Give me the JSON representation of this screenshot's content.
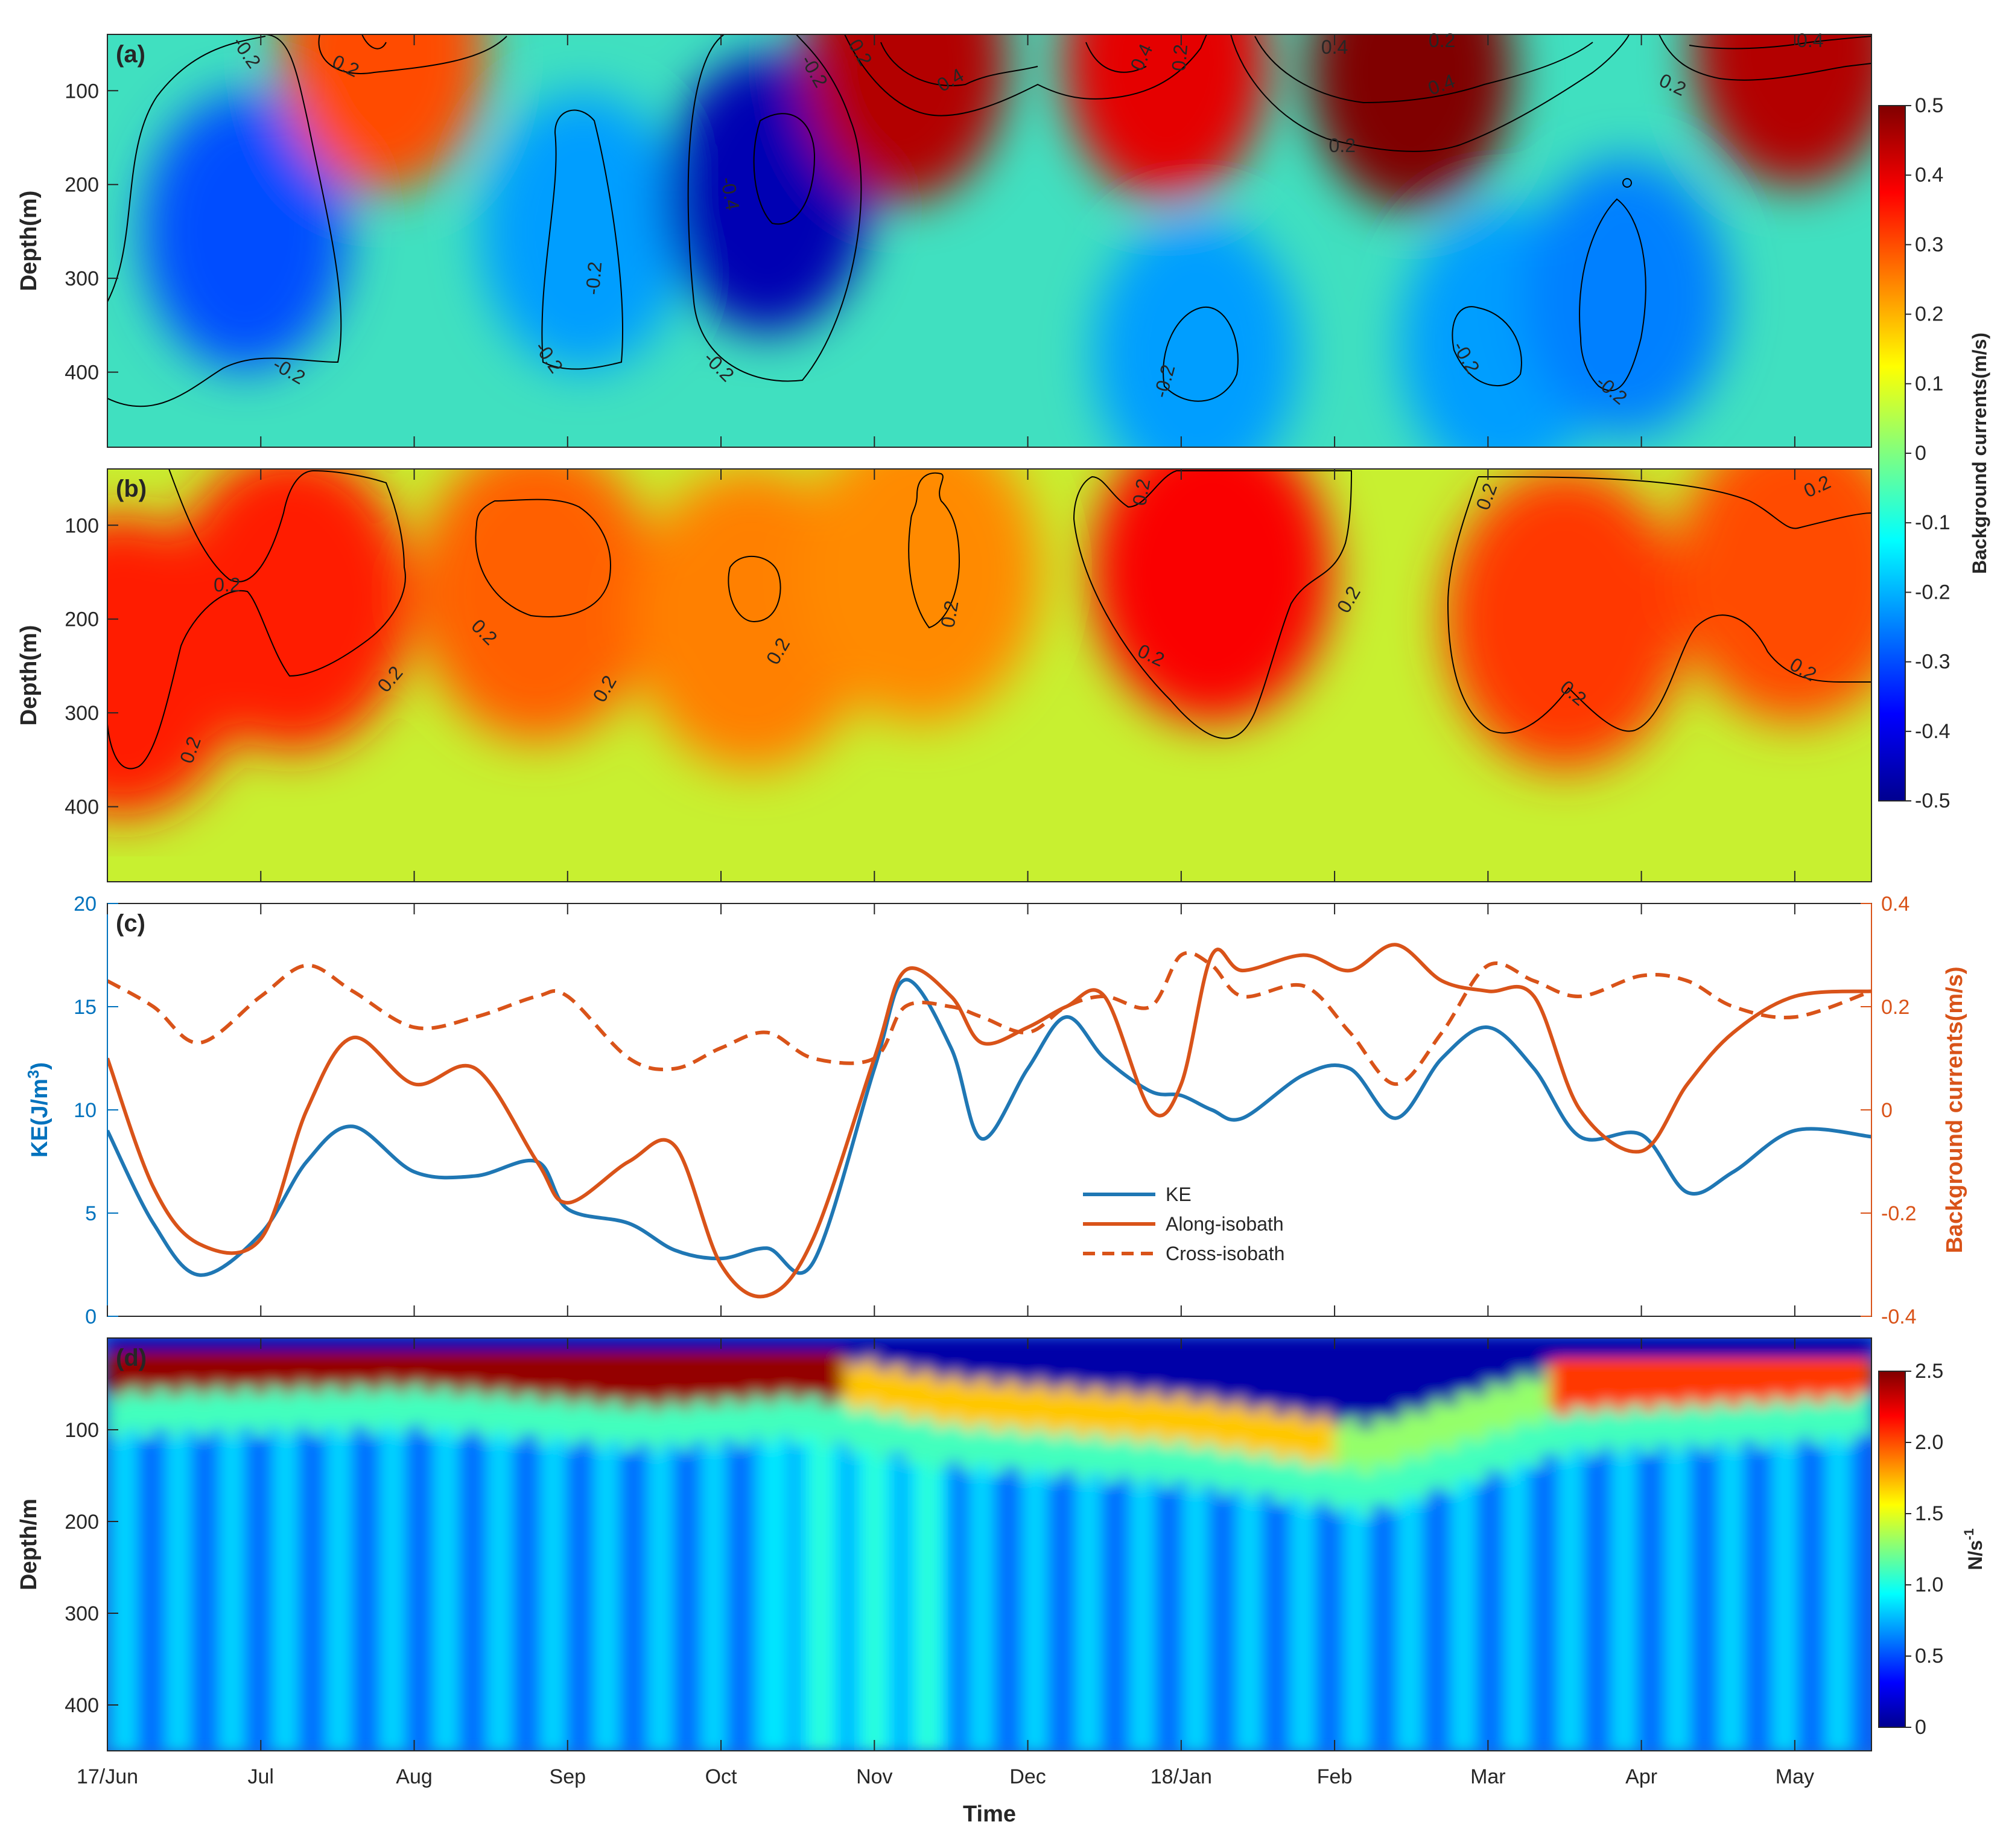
{
  "figure": {
    "xlabel": "Time",
    "time_ticks": [
      "17/Jun",
      "Jul",
      "Aug",
      "Sep",
      "Oct",
      "Nov",
      "Dec",
      "18/Jan",
      "Feb",
      "Mar",
      "Apr",
      "May"
    ],
    "depth_ticks": [
      "100",
      "200",
      "300",
      "400"
    ],
    "colors": {
      "blue_line": "#1f77b4",
      "orange_line": "#d95319",
      "axis_left": "#0072bd",
      "axis_right": "#d95319"
    }
  },
  "chart_data": [
    {
      "type": "heatmap",
      "panel": "(a)",
      "ylabel": "Depth(m)",
      "ylim": [
        480,
        40
      ],
      "xlim_months": [
        0,
        11.5
      ],
      "colorbar": {
        "label": "Background currents(m/s)",
        "range": [
          -0.5,
          0.5
        ],
        "ticks": [
          "0.5",
          "0.4",
          "0.3",
          "0.2",
          "0.1",
          "0",
          "-0.1",
          "-0.2",
          "-0.3",
          "-0.4",
          "-0.5"
        ]
      },
      "features": [
        {
          "t": 0.9,
          "d": 250,
          "value": -0.3
        },
        {
          "t": 3.1,
          "d": 250,
          "value": -0.22
        },
        {
          "t": 4.3,
          "d": 210,
          "value": -0.45
        },
        {
          "t": 1.8,
          "d": 60,
          "value": 0.3
        },
        {
          "t": 5.2,
          "d": 70,
          "value": 0.45
        },
        {
          "t": 6.9,
          "d": 70,
          "value": 0.4
        },
        {
          "t": 8.5,
          "d": 80,
          "value": 0.5
        },
        {
          "t": 11.0,
          "d": 55,
          "value": 0.45
        },
        {
          "t": 7.1,
          "d": 380,
          "value": -0.22
        },
        {
          "t": 9.1,
          "d": 370,
          "value": -0.22
        },
        {
          "t": 9.9,
          "d": 320,
          "value": -0.25
        }
      ],
      "contour_labels": [
        {
          "text": "-0.2",
          "t": 0.9,
          "d": 60,
          "rot": 55
        },
        {
          "text": "-0.2",
          "t": 1.18,
          "d": 400,
          "rot": 30
        },
        {
          "text": "0.2",
          "t": 1.55,
          "d": 75,
          "rot": 25
        },
        {
          "text": "-0.2",
          "t": 3.18,
          "d": 300,
          "rot": -85
        },
        {
          "text": "-0.2",
          "t": 2.87,
          "d": 385,
          "rot": 55
        },
        {
          "text": "-0.4",
          "t": 4.05,
          "d": 210,
          "rot": 80
        },
        {
          "text": "-0.2",
          "t": 4.6,
          "d": 80,
          "rot": 60
        },
        {
          "text": "-0.2",
          "t": 3.98,
          "d": 395,
          "rot": 45
        },
        {
          "text": "0.2",
          "t": 4.9,
          "d": 60,
          "rot": 60
        },
        {
          "text": "0.4",
          "t": 5.5,
          "d": 90,
          "rot": -30
        },
        {
          "text": "0.4",
          "t": 6.75,
          "d": 65,
          "rot": -65
        },
        {
          "text": "0.2",
          "t": 7.0,
          "d": 65,
          "rot": -85
        },
        {
          "text": "0.4",
          "t": 8.0,
          "d": 55,
          "rot": 0
        },
        {
          "text": "0.2",
          "t": 8.7,
          "d": 48,
          "rot": 0
        },
        {
          "text": "0.4",
          "t": 8.7,
          "d": 95,
          "rot": -20
        },
        {
          "text": "0.2",
          "t": 8.05,
          "d": 160,
          "rot": 0
        },
        {
          "text": "0.4",
          "t": 11.1,
          "d": 48,
          "rot": 0
        },
        {
          "text": "0.2",
          "t": 10.2,
          "d": 95,
          "rot": 25
        },
        {
          "text": "-0.2",
          "t": 6.9,
          "d": 410,
          "rot": -75
        },
        {
          "text": "-0.2",
          "t": 8.85,
          "d": 385,
          "rot": 60
        },
        {
          "text": "-0.2",
          "t": 9.8,
          "d": 420,
          "rot": 40
        }
      ]
    },
    {
      "type": "heatmap",
      "panel": "(b)",
      "ylabel": "Depth(m)",
      "ylim": [
        480,
        40
      ],
      "xlim_months": [
        0,
        11.5
      ],
      "features": [
        {
          "t": 0.1,
          "d": 250,
          "value": 0.35
        },
        {
          "t": 1.2,
          "d": 180,
          "value": 0.35
        },
        {
          "t": 2.8,
          "d": 170,
          "value": 0.28
        },
        {
          "t": 4.2,
          "d": 200,
          "value": 0.25
        },
        {
          "t": 5.3,
          "d": 150,
          "value": 0.24
        },
        {
          "t": 7.2,
          "d": 150,
          "value": 0.38
        },
        {
          "t": 9.5,
          "d": 200,
          "value": 0.32
        },
        {
          "t": 11.0,
          "d": 150,
          "value": 0.3
        }
      ],
      "contour_labels": [
        {
          "text": "0.2",
          "t": 0.78,
          "d": 165,
          "rot": 0
        },
        {
          "text": "0.2",
          "t": 0.55,
          "d": 340,
          "rot": -70
        },
        {
          "text": "0.2",
          "t": 1.85,
          "d": 265,
          "rot": -50
        },
        {
          "text": "0.2",
          "t": 2.45,
          "d": 215,
          "rot": 45
        },
        {
          "text": "0.2",
          "t": 3.25,
          "d": 275,
          "rot": -60
        },
        {
          "text": "0.2",
          "t": 4.38,
          "d": 235,
          "rot": -60
        },
        {
          "text": "0.2",
          "t": 5.5,
          "d": 195,
          "rot": -80
        },
        {
          "text": "0.2",
          "t": 6.8,
          "d": 240,
          "rot": 25
        },
        {
          "text": "0.2",
          "t": 6.75,
          "d": 65,
          "rot": -80
        },
        {
          "text": "0.2",
          "t": 8.1,
          "d": 180,
          "rot": -60
        },
        {
          "text": "0.2",
          "t": 9.0,
          "d": 70,
          "rot": -70
        },
        {
          "text": "0.2",
          "t": 9.55,
          "d": 280,
          "rot": 40
        },
        {
          "text": "0.2",
          "t": 11.15,
          "d": 60,
          "rot": -25
        },
        {
          "text": "0.2",
          "t": 11.05,
          "d": 255,
          "rot": 30
        }
      ]
    },
    {
      "type": "line",
      "panel": "(c)",
      "ylabel_left": "KE(J/m",
      "ylabel_left_sup": "3",
      "ylabel_left_end": ")",
      "ylabel_right": "Background currents(m/s)",
      "ylim_left": [
        0,
        20
      ],
      "ylim_right": [
        -0.4,
        0.4
      ],
      "yticks_left": [
        "0",
        "5",
        "10",
        "15",
        "20"
      ],
      "yticks_right": [
        "-0.4",
        "-0.2",
        "0",
        "0.2",
        "0.4"
      ],
      "x_months": [
        0,
        0.3,
        0.6,
        1.0,
        1.3,
        1.6,
        2.0,
        2.4,
        2.8,
        3.0,
        3.4,
        3.7,
        4.0,
        4.3,
        4.6,
        5.0,
        5.2,
        5.5,
        5.7,
        6.0,
        6.25,
        6.5,
        6.8,
        7.0,
        7.2,
        7.4,
        7.8,
        8.1,
        8.4,
        8.7,
        9.0,
        9.3,
        9.6,
        10.0,
        10.3,
        10.6,
        11.0,
        11.5
      ],
      "series": [
        {
          "name": "KE",
          "axis": "left",
          "style": "solid",
          "values": [
            9.0,
            4.5,
            2.0,
            4.0,
            7.5,
            9.2,
            7.0,
            6.8,
            7.5,
            5.2,
            4.5,
            3.2,
            2.8,
            3.3,
            2.6,
            12.0,
            16.3,
            13.0,
            8.6,
            12.0,
            14.5,
            12.5,
            10.9,
            10.7,
            10.0,
            9.6,
            11.7,
            12.0,
            9.6,
            12.5,
            14.0,
            12.0,
            8.7,
            8.8,
            6.0,
            7.0,
            9.0,
            8.7
          ]
        },
        {
          "name": "Along-isobath",
          "axis": "right",
          "style": "solid",
          "values": [
            0.1,
            -0.15,
            -0.26,
            -0.25,
            0.0,
            0.14,
            0.05,
            0.08,
            -0.1,
            -0.18,
            -0.1,
            -0.07,
            -0.3,
            -0.36,
            -0.25,
            0.1,
            0.27,
            0.22,
            0.13,
            0.16,
            0.2,
            0.22,
            0.0,
            0.05,
            0.3,
            0.27,
            0.3,
            0.27,
            0.32,
            0.25,
            0.23,
            0.22,
            0.0,
            -0.08,
            0.05,
            0.15,
            0.22,
            0.23
          ]
        },
        {
          "name": "Cross-isobath",
          "axis": "right",
          "style": "dashed",
          "values": [
            0.25,
            0.2,
            0.13,
            0.22,
            0.28,
            0.23,
            0.16,
            0.18,
            0.22,
            0.22,
            0.1,
            0.08,
            0.12,
            0.15,
            0.1,
            0.1,
            0.2,
            0.2,
            0.18,
            0.15,
            0.2,
            0.22,
            0.2,
            0.3,
            0.28,
            0.22,
            0.24,
            0.15,
            0.05,
            0.15,
            0.28,
            0.25,
            0.22,
            0.26,
            0.25,
            0.2,
            0.18,
            0.23
          ]
        }
      ],
      "legend": [
        "KE",
        "Along-isobath",
        "Cross-isobath"
      ],
      "legend_position": "center"
    },
    {
      "type": "heatmap",
      "panel": "(d)",
      "ylabel": "Depth/m",
      "ylim": [
        450,
        0
      ],
      "colorbar": {
        "label": "N/s",
        "label_sup": "-1",
        "range": [
          0,
          2.5
        ],
        "ticks": [
          "2.5",
          "2.0",
          "1.5",
          "1.0",
          "0.5",
          "0"
        ]
      },
      "thermocline_depth_m": [
        {
          "t": 0,
          "d": 35
        },
        {
          "t": 2,
          "d": 30
        },
        {
          "t": 3.5,
          "d": 50
        },
        {
          "t": 4.5,
          "d": 40
        },
        {
          "t": 5.5,
          "d": 70
        },
        {
          "t": 7.0,
          "d": 90
        },
        {
          "t": 8.2,
          "d": 120
        },
        {
          "t": 9.5,
          "d": 55
        },
        {
          "t": 11.5,
          "d": 40
        }
      ],
      "surface_mixed_layer_n": 0.1,
      "deep_value_n": 0.7
    }
  ]
}
